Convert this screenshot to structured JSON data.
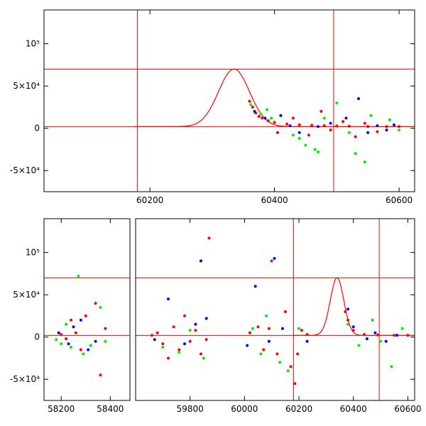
{
  "chart_data": [
    {
      "type": "scatter",
      "title": "",
      "xlabel": "",
      "ylabel": "",
      "xlim": [
        60030,
        60625
      ],
      "ylim": [
        -75000,
        140000
      ],
      "x_ticks": [
        60200,
        60400,
        60600
      ],
      "y_ticks": [
        {
          "value": 100000,
          "label": "10⁵"
        },
        {
          "value": 50000,
          "label": "5×10⁴"
        },
        {
          "value": 0,
          "label": "0"
        },
        {
          "value": -50000,
          "label": "-5×10⁴"
        }
      ],
      "reference_lines": {
        "horizontal": [
          70000,
          2000
        ],
        "vertical": [
          60180,
          60495
        ]
      },
      "model_curve": {
        "center": 60335,
        "peak": 70000,
        "width": 25,
        "baseline": 2000
      },
      "series": [
        {
          "color": "#ff0000",
          "points": [
            [
              60360,
              32000
            ],
            [
              60365,
              25000
            ],
            [
              60370,
              18000
            ],
            [
              60375,
              14000
            ],
            [
              60380,
              12000
            ],
            [
              60390,
              9000
            ],
            [
              60400,
              7000
            ],
            [
              60420,
              5000
            ],
            [
              60440,
              4000
            ],
            [
              60460,
              3500
            ],
            [
              60480,
              3000
            ],
            [
              60500,
              2800
            ],
            [
              60520,
              2500
            ],
            [
              60550,
              2200
            ],
            [
              60580,
              2000
            ],
            [
              60600,
              2000
            ],
            [
              60405,
              -5000
            ],
            [
              60430,
              12000
            ],
            [
              60455,
              -8000
            ],
            [
              60475,
              20000
            ],
            [
              60490,
              -2000
            ],
            [
              60510,
              8000
            ],
            [
              60530,
              -10000
            ],
            [
              60545,
              6000
            ],
            [
              60565,
              -4000
            ]
          ]
        },
        {
          "color": "#00ee00",
          "points": [
            [
              60362,
              28000
            ],
            [
              60378,
              17000
            ],
            [
              60388,
              22000
            ],
            [
              60395,
              12000
            ],
            [
              60410,
              15000
            ],
            [
              60430,
              -8000
            ],
            [
              60440,
              -12000
            ],
            [
              60450,
              -20000
            ],
            [
              60465,
              -25000
            ],
            [
              60470,
              -28000
            ],
            [
              60480,
              12000
            ],
            [
              60500,
              30000
            ],
            [
              60520,
              -5000
            ],
            [
              60530,
              -30000
            ],
            [
              60545,
              -40000
            ],
            [
              60555,
              15000
            ],
            [
              60585,
              10000
            ],
            [
              60600,
              -2000
            ]
          ]
        },
        {
          "color": "#0000ff",
          "points": [
            [
              60368,
              20000
            ],
            [
              60385,
              12000
            ],
            [
              60410,
              15000
            ],
            [
              60425,
              3000
            ],
            [
              60440,
              -5000
            ],
            [
              60470,
              2000
            ],
            [
              60490,
              6000
            ],
            [
              60515,
              12000
            ],
            [
              60535,
              35000
            ],
            [
              60550,
              -5000
            ],
            [
              60565,
              3000
            ],
            [
              60580,
              -2000
            ],
            [
              60592,
              4000
            ]
          ]
        }
      ]
    },
    {
      "type": "scatter",
      "title": "",
      "xlabel": "",
      "ylabel": "",
      "panels": [
        {
          "xlim": [
            58130,
            58480
          ],
          "x_ticks": [
            58200,
            58400
          ]
        },
        {
          "xlim": [
            59600,
            60625
          ],
          "x_ticks": [
            59800,
            60000,
            60200,
            60400,
            60600
          ]
        }
      ],
      "ylim": [
        -75000,
        140000
      ],
      "y_ticks": [
        {
          "value": 100000,
          "label": "10⁵"
        },
        {
          "value": 50000,
          "label": "5×10⁴"
        },
        {
          "value": 0,
          "label": "0"
        },
        {
          "value": -50000,
          "label": "-5×10⁴"
        }
      ],
      "reference_lines": {
        "horizontal": [
          70000,
          2000
        ],
        "vertical": [
          60180,
          60495
        ]
      },
      "model_curve": {
        "center": 60340,
        "peak": 70000,
        "width": 25,
        "baseline": 2000
      },
      "series": [
        {
          "color": "#ff0000",
          "points": [
            [
              58200,
              3000
            ],
            [
              58220,
              -2000
            ],
            [
              58240,
              20000
            ],
            [
              58260,
              5000
            ],
            [
              58280,
              -15000
            ],
            [
              58300,
              25000
            ],
            [
              58320,
              -10000
            ],
            [
              58340,
              40000
            ],
            [
              58360,
              -45000
            ],
            [
              58380,
              10000
            ],
            [
              59660,
              2000
            ],
            [
              59680,
              5000
            ],
            [
              59700,
              -8000
            ],
            [
              59720,
              -25000
            ],
            [
              59740,
              12000
            ],
            [
              59760,
              -15000
            ],
            [
              59780,
              25000
            ],
            [
              59800,
              -5000
            ],
            [
              59820,
              8000
            ],
            [
              59840,
              -20000
            ],
            [
              59860,
              -3000
            ],
            [
              59870,
              117000
            ],
            [
              60020,
              5000
            ],
            [
              60050,
              12000
            ],
            [
              60070,
              -15000
            ],
            [
              60090,
              10000
            ],
            [
              60100,
              90000
            ],
            [
              60120,
              -20000
            ],
            [
              60150,
              30000
            ],
            [
              60170,
              -35000
            ],
            [
              60185,
              -55000
            ],
            [
              60195,
              -20000
            ],
            [
              60210,
              8000
            ],
            [
              60230,
              3000
            ],
            [
              60370,
              30000
            ],
            [
              60380,
              20000
            ],
            [
              60400,
              8000
            ],
            [
              60440,
              3000
            ],
            [
              60490,
              2500
            ],
            [
              60550,
              2000
            ],
            [
              60600,
              2000
            ]
          ]
        },
        {
          "color": "#00ee00",
          "points": [
            [
              58180,
              -3000
            ],
            [
              58200,
              -8000
            ],
            [
              58220,
              15000
            ],
            [
              58240,
              -12000
            ],
            [
              58270,
              72000
            ],
            [
              58290,
              -20000
            ],
            [
              58320,
              -10000
            ],
            [
              58360,
              35000
            ],
            [
              58380,
              -5000
            ],
            [
              59700,
              -12000
            ],
            [
              59760,
              -18000
            ],
            [
              59800,
              8000
            ],
            [
              59850,
              -25000
            ],
            [
              60030,
              10000
            ],
            [
              60060,
              -20000
            ],
            [
              60080,
              25000
            ],
            [
              60130,
              -30000
            ],
            [
              60160,
              -40000
            ],
            [
              60200,
              10000
            ],
            [
              60380,
              15000
            ],
            [
              60420,
              -10000
            ],
            [
              60470,
              20000
            ],
            [
              60500,
              -5000
            ],
            [
              60540,
              -35000
            ],
            [
              60580,
              10000
            ]
          ]
        },
        {
          "color": "#0000ff",
          "points": [
            [
              58190,
              5000
            ],
            [
              58230,
              -8000
            ],
            [
              58250,
              12000
            ],
            [
              58280,
              20000
            ],
            [
              58310,
              -15000
            ],
            [
              58340,
              -5000
            ],
            [
              59670,
              -3000
            ],
            [
              59720,
              45000
            ],
            [
              59780,
              -8000
            ],
            [
              59820,
              15000
            ],
            [
              59840,
              90000
            ],
            [
              59860,
              22000
            ],
            [
              60010,
              -10000
            ],
            [
              60040,
              60000
            ],
            [
              60090,
              -5000
            ],
            [
              60110,
              93000
            ],
            [
              60140,
              10000
            ],
            [
              60230,
              -5000
            ],
            [
              60380,
              33000
            ],
            [
              60400,
              12000
            ],
            [
              60450,
              -2000
            ],
            [
              60480,
              5000
            ],
            [
              60520,
              -5000
            ],
            [
              60560,
              2000
            ]
          ]
        }
      ]
    }
  ]
}
